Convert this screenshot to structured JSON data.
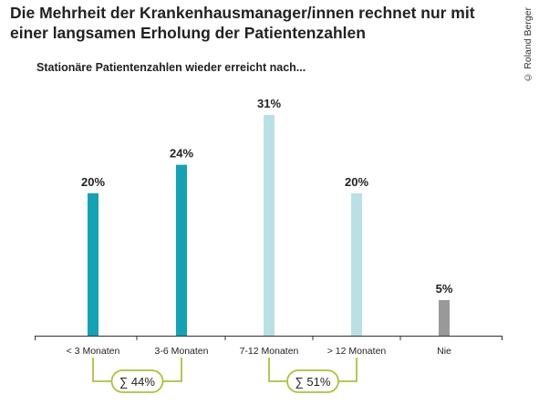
{
  "header": {
    "title": "Die Mehrheit der Krankenhausmanager/innen rechnet nur mit einer langsamen Erholung der Patientenzahlen",
    "subtitle": "Stationäre Patientenzahlen wieder erreicht nach...",
    "copyright": "© Roland Berger"
  },
  "colors": {
    "dark_teal": "#13a3b5",
    "light_teal": "#b9e1e5",
    "grey": "#999999",
    "bracket": "#a8c43a",
    "axis": "#333333"
  },
  "chart_data": {
    "type": "bar",
    "title": "Die Mehrheit der Krankenhausmanager/innen rechnet nur mit einer langsamen Erholung der Patientenzahlen",
    "subtitle": "Stationäre Patientenzahlen wieder erreicht nach...",
    "categories": [
      "< 3 Monaten",
      "3-6 Monaten",
      "7-12 Monaten",
      "> 12 Monaten",
      "Nie"
    ],
    "values": [
      20,
      24,
      31,
      20,
      5
    ],
    "value_labels": [
      "20%",
      "24%",
      "31%",
      "20%",
      "5%"
    ],
    "bar_colors": [
      "#13a3b5",
      "#13a3b5",
      "#b9e1e5",
      "#b9e1e5",
      "#999999"
    ],
    "unit": "%",
    "ylim": [
      0,
      31
    ],
    "grid": false,
    "xlabel": "",
    "ylabel": "",
    "groups": [
      {
        "label": "∑ 44%",
        "from": 0,
        "to": 1
      },
      {
        "label": "∑ 51%",
        "from": 2,
        "to": 3
      }
    ]
  }
}
